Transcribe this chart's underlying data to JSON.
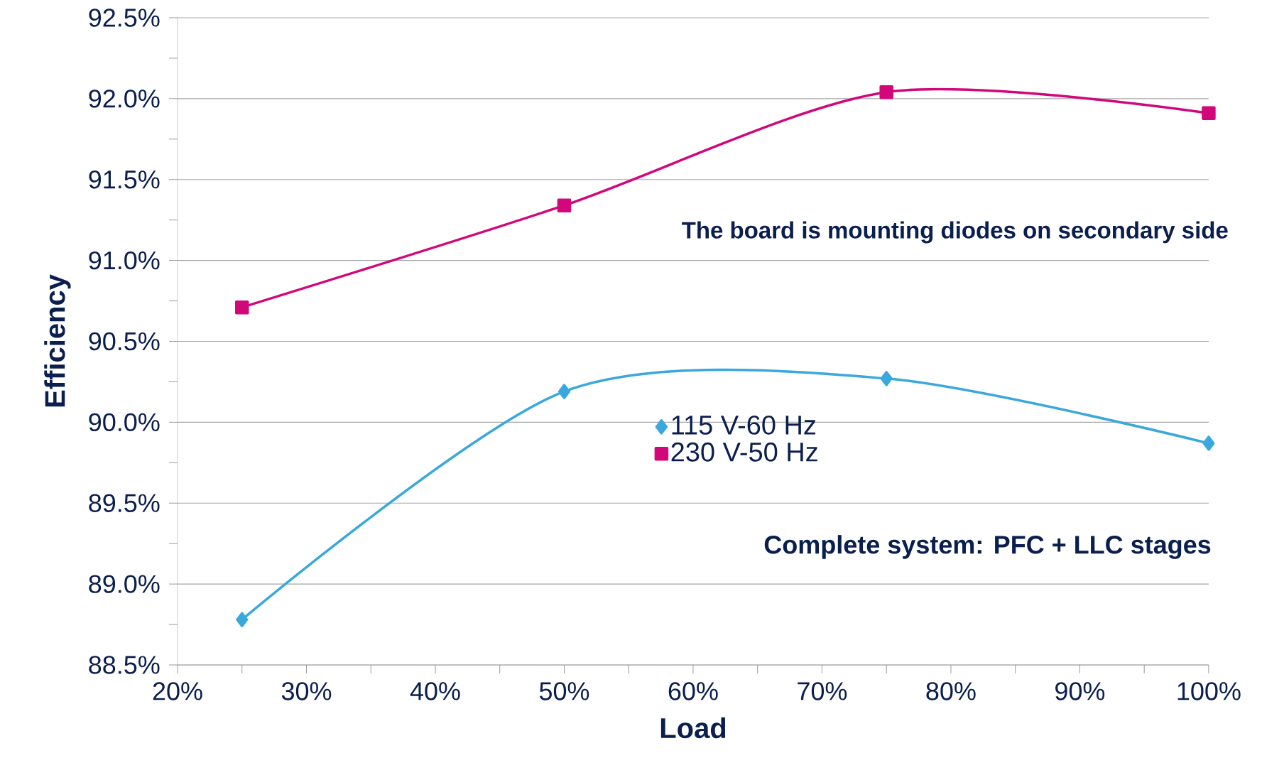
{
  "chart_data": {
    "type": "line",
    "xlabel": "Load",
    "ylabel": "Efficiency",
    "x": [
      25,
      50,
      75,
      100
    ],
    "series": [
      {
        "name": "115 V-60 Hz",
        "color": "#3aa8dc",
        "marker": "diamond",
        "values": [
          88.78,
          90.19,
          90.27,
          89.87
        ]
      },
      {
        "name": "230 V-50 Hz",
        "color": "#d1077a",
        "marker": "square",
        "values": [
          90.71,
          91.34,
          92.04,
          91.91
        ]
      }
    ],
    "xlim": [
      20,
      100
    ],
    "ylim": [
      88.5,
      92.5
    ],
    "xticks": [
      {
        "value": 20,
        "label": "20%"
      },
      {
        "value": 30,
        "label": "30%"
      },
      {
        "value": 40,
        "label": "40%"
      },
      {
        "value": 50,
        "label": "50%"
      },
      {
        "value": 60,
        "label": "60%"
      },
      {
        "value": 70,
        "label": "70%"
      },
      {
        "value": 80,
        "label": "80%"
      },
      {
        "value": 90,
        "label": "90%"
      },
      {
        "value": 100,
        "label": "100%"
      }
    ],
    "yticks": [
      {
        "value": 88.5,
        "label": "88.5%"
      },
      {
        "value": 89.0,
        "label": "89.0%"
      },
      {
        "value": 89.5,
        "label": "89.5%"
      },
      {
        "value": 90.0,
        "label": "90.0%"
      },
      {
        "value": 90.5,
        "label": "90.5%"
      },
      {
        "value": 91.0,
        "label": "91.0%"
      },
      {
        "value": 91.5,
        "label": "91.5%"
      },
      {
        "value": 92.0,
        "label": "92.0%"
      },
      {
        "value": 92.5,
        "label": "92.5%"
      }
    ],
    "grid": "y",
    "legend": "center",
    "line_style": "solid",
    "annotations": [
      "The **board** is mounting diodes on secondary side",
      "Complete system: PFC + LLC stages"
    ]
  }
}
